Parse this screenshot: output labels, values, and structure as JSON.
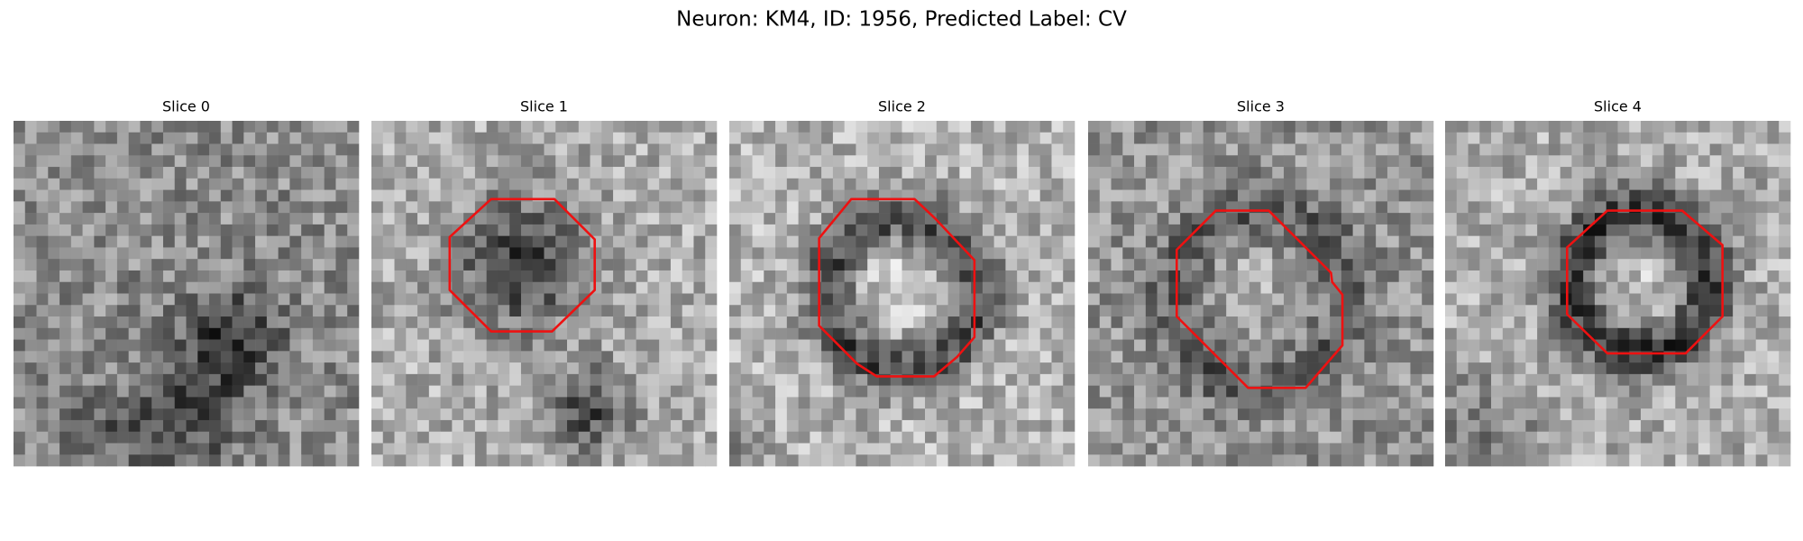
{
  "title": "Neuron: KM4, ID: 1956, Predicted Label: CV",
  "panels": [
    {
      "title": "Slice 0"
    },
    {
      "title": "Slice 1"
    },
    {
      "title": "Slice 2"
    },
    {
      "title": "Slice 3"
    },
    {
      "title": "Slice 4"
    }
  ]
}
